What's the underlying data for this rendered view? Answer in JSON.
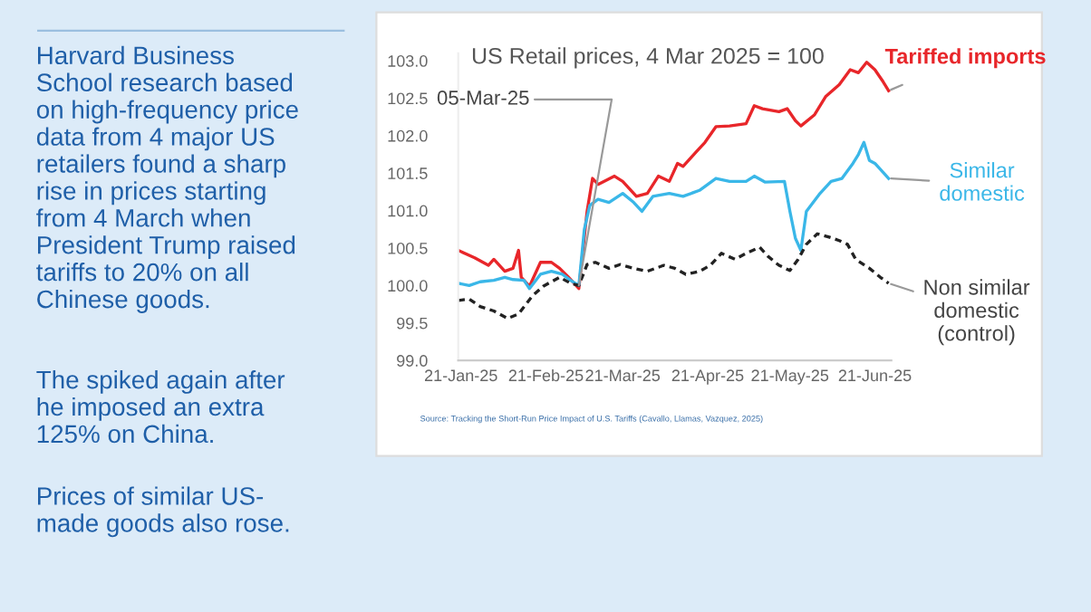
{
  "chart_data": {
    "type": "line",
    "title": "US Retail prices, 4 Mar 2025 = 100",
    "xlim": [
      "2025-01-20",
      "2025-06-27"
    ],
    "xticks": [
      {
        "value": "2025-01-21",
        "label": "21-Jan-25"
      },
      {
        "value": "2025-02-21",
        "label": "21-Feb-25"
      },
      {
        "value": "2025-03-21",
        "label": "21-Mar-25"
      },
      {
        "value": "2025-04-21",
        "label": "21-Apr-25"
      },
      {
        "value": "2025-05-21",
        "label": "21-May-25"
      },
      {
        "value": "2025-06-21",
        "label": "21-Jun-25"
      }
    ],
    "ylim": [
      99,
      103.1
    ],
    "yticks": [
      {
        "value": 99,
        "label": "99.0"
      },
      {
        "value": 99.5,
        "label": "99.5"
      },
      {
        "value": 100,
        "label": "100.0"
      },
      {
        "value": 100.5,
        "label": "100.5"
      },
      {
        "value": 101,
        "label": "101.0"
      },
      {
        "value": 101.5,
        "label": "101.5"
      },
      {
        "value": 102,
        "label": "102.0"
      },
      {
        "value": 102.5,
        "label": "102.5"
      },
      {
        "value": 103,
        "label": "103.0"
      }
    ],
    "grid": false,
    "legend": false,
    "marker": "none",
    "series": [
      {
        "name": "Tariffed imports",
        "color": "#e8262a",
        "line_style": "solid",
        "x": [
          "2025-01-20",
          "2025-01-26",
          "2025-01-31",
          "2025-02-02",
          "2025-02-06",
          "2025-02-09",
          "2025-02-11",
          "2025-02-12",
          "2025-02-15",
          "2025-02-19",
          "2025-02-23",
          "2025-02-26",
          "2025-03-01",
          "2025-03-05",
          "2025-03-08",
          "2025-03-10",
          "2025-03-12",
          "2025-03-18",
          "2025-03-21",
          "2025-03-26",
          "2025-03-30",
          "2025-04-03",
          "2025-04-07",
          "2025-04-10",
          "2025-04-12",
          "2025-04-17",
          "2025-04-20",
          "2025-04-24",
          "2025-04-29",
          "2025-05-05",
          "2025-05-08",
          "2025-05-11",
          "2025-05-17",
          "2025-05-20",
          "2025-05-23",
          "2025-05-25",
          "2025-05-30",
          "2025-06-03",
          "2025-06-08",
          "2025-06-12",
          "2025-06-15",
          "2025-06-18",
          "2025-06-21",
          "2025-06-24",
          "2025-06-26"
        ],
        "values": [
          100.47,
          100.37,
          100.27,
          100.35,
          100.19,
          100.23,
          100.47,
          100.11,
          99.99,
          100.31,
          100.31,
          100.23,
          100.12,
          99.96,
          100.99,
          101.43,
          101.35,
          101.46,
          101.39,
          101.19,
          101.23,
          101.46,
          101.39,
          101.63,
          101.59,
          101.79,
          101.91,
          102.12,
          102.13,
          102.16,
          102.4,
          102.36,
          102.32,
          102.36,
          102.2,
          102.13,
          102.28,
          102.52,
          102.68,
          102.88,
          102.84,
          102.98,
          102.88,
          102.72,
          102.6
        ]
      },
      {
        "name": "Similar\ndomestic",
        "color": "#3ab7e8",
        "line_style": "solid",
        "x": [
          "2025-01-20",
          "2025-01-24",
          "2025-01-28",
          "2025-02-02",
          "2025-02-06",
          "2025-02-09",
          "2025-02-13",
          "2025-02-15",
          "2025-02-19",
          "2025-02-23",
          "2025-02-27",
          "2025-03-02",
          "2025-03-05",
          "2025-03-07",
          "2025-03-09",
          "2025-03-12",
          "2025-03-16",
          "2025-03-21",
          "2025-03-25",
          "2025-03-28",
          "2025-04-01",
          "2025-04-07",
          "2025-04-12",
          "2025-04-18",
          "2025-04-24",
          "2025-04-29",
          "2025-05-05",
          "2025-05-08",
          "2025-05-12",
          "2025-05-19",
          "2025-05-21",
          "2025-05-23",
          "2025-05-25",
          "2025-05-27",
          "2025-06-01",
          "2025-06-05",
          "2025-06-09",
          "2025-06-13",
          "2025-06-15",
          "2025-06-17",
          "2025-06-19",
          "2025-06-21",
          "2025-06-24",
          "2025-06-26"
        ],
        "values": [
          100.03,
          100.0,
          100.05,
          100.07,
          100.11,
          100.08,
          100.07,
          99.96,
          100.15,
          100.19,
          100.15,
          100.07,
          100.0,
          100.75,
          101.07,
          101.15,
          101.11,
          101.23,
          101.11,
          100.99,
          101.19,
          101.23,
          101.19,
          101.27,
          101.43,
          101.39,
          101.39,
          101.46,
          101.38,
          101.39,
          100.99,
          100.63,
          100.47,
          100.99,
          101.23,
          101.39,
          101.43,
          101.63,
          101.75,
          101.91,
          101.67,
          101.63,
          101.51,
          101.43
        ]
      },
      {
        "name": "Non similar\ndomestic\n(control)",
        "color": "#222222",
        "line_style": "dashed",
        "x": [
          "2025-01-20",
          "2025-01-24",
          "2025-01-28",
          "2025-02-02",
          "2025-02-07",
          "2025-02-11",
          "2025-02-16",
          "2025-02-20",
          "2025-02-26",
          "2025-03-02",
          "2025-03-05",
          "2025-03-08",
          "2025-03-11",
          "2025-03-16",
          "2025-03-20",
          "2025-03-25",
          "2025-03-30",
          "2025-04-05",
          "2025-04-09",
          "2025-04-13",
          "2025-04-18",
          "2025-04-22",
          "2025-04-26",
          "2025-05-01",
          "2025-05-05",
          "2025-05-10",
          "2025-05-13",
          "2025-05-17",
          "2025-05-21",
          "2025-05-24",
          "2025-05-27",
          "2025-05-31",
          "2025-06-04",
          "2025-06-08",
          "2025-06-11",
          "2025-06-14",
          "2025-06-19",
          "2025-06-23",
          "2025-06-26"
        ],
        "values": [
          99.8,
          99.82,
          99.72,
          99.66,
          99.56,
          99.62,
          99.86,
          99.99,
          100.11,
          100.03,
          100.0,
          100.28,
          100.31,
          100.23,
          100.28,
          100.23,
          100.19,
          100.27,
          100.23,
          100.15,
          100.19,
          100.27,
          100.43,
          100.35,
          100.43,
          100.51,
          100.39,
          100.27,
          100.2,
          100.35,
          100.55,
          100.69,
          100.65,
          100.6,
          100.55,
          100.35,
          100.23,
          100.11,
          100.03
        ]
      }
    ],
    "annotations": [
      {
        "text": "05-Mar-25",
        "x": "2025-03-05",
        "y": 100.0
      },
      "Source: Tracking the Short-Run Price Impact of U.S. Tariffs (Cavallo, Llamas, Vazquez, 2025)",
      "Harvard Business\nSchool research based\non high-frequency price\ndata from 4 major US\nretailers found a sharp\nrise in prices starting\nfrom 4 March when\nPresident Trump raised\ntariffs to 20% on all\nChinese goods.",
      "The spiked again after\nhe imposed an extra\n125% on China.",
      "Prices of similar US-\nmade goods also rose."
    ]
  }
}
